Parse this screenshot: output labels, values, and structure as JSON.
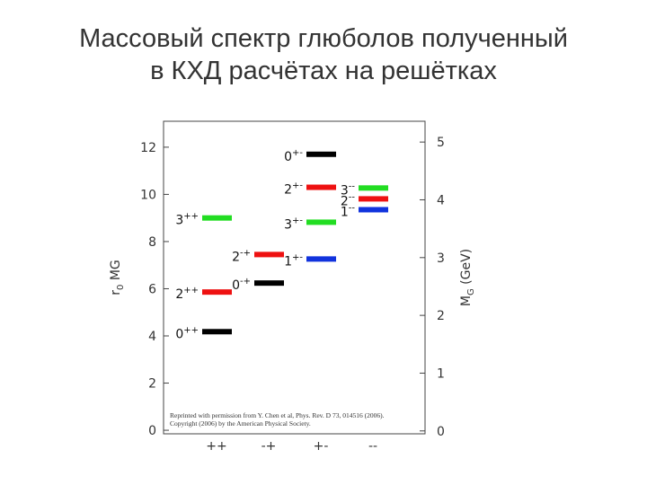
{
  "chart_data": {
    "type": "levels",
    "title": [
      "Массовый спектр глюболов полученный",
      "в КХД расчётах на решётках"
    ],
    "ylabel": [
      "r",
      "0",
      " M",
      "G"
    ],
    "y2label": [
      "M",
      "G",
      " (GeV)"
    ],
    "ylim": [
      -0.15,
      13.1
    ],
    "yticks": [
      0,
      2,
      4,
      6,
      8,
      10,
      12
    ],
    "y2lim": [
      -0.05,
      5.36
    ],
    "y2ticks": [
      0,
      1,
      2,
      3,
      4,
      5
    ],
    "note": [
      "Reprinted with permission from Y. Chen et al, Phys. Rev. D 73, 014516 (2006).",
      "Copyright (2006) by the American Physical Society."
    ],
    "groups": [
      {
        "category": "++",
        "states": [
          {
            "J": "3",
            "PC": "++",
            "value": 9.0,
            "color": "#22dd22"
          },
          {
            "J": "2",
            "PC": "++",
            "value": 5.86,
            "color": "#ee1111"
          },
          {
            "J": "0",
            "PC": "++",
            "value": 4.18,
            "color": "#000000"
          }
        ]
      },
      {
        "category": "-+",
        "states": [
          {
            "J": "2",
            "PC": "-+",
            "value": 7.45,
            "color": "#ee1111"
          },
          {
            "J": "0",
            "PC": "-+",
            "value": 6.24,
            "color": "#000000"
          }
        ]
      },
      {
        "category": "+-",
        "states": [
          {
            "J": "0",
            "PC": "+-",
            "value": 11.7,
            "color": "#000000"
          },
          {
            "J": "2",
            "PC": "+-",
            "value": 10.3,
            "color": "#ee1111"
          },
          {
            "J": "3",
            "PC": "+-",
            "value": 8.82,
            "color": "#22dd22"
          },
          {
            "J": "1",
            "PC": "+-",
            "value": 7.26,
            "color": "#1133dd"
          }
        ]
      },
      {
        "category": "--",
        "states": [
          {
            "J": "3",
            "PC": "--",
            "value": 10.27,
            "color": "#22dd22"
          },
          {
            "J": "2",
            "PC": "--",
            "value": 9.81,
            "color": "#ee1111"
          },
          {
            "J": "1",
            "PC": "--",
            "value": 9.35,
            "color": "#1133dd"
          }
        ]
      }
    ]
  }
}
